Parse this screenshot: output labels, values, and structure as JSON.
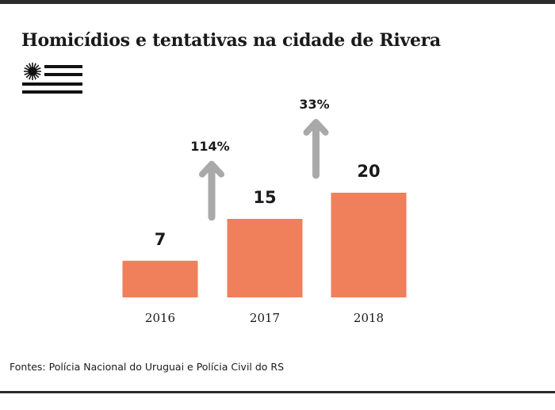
{
  "chart_data": {
    "type": "bar",
    "title": "Homicídios e tentativas na cidade de Rivera",
    "categories": [
      "2016",
      "2017",
      "2018"
    ],
    "values": [
      7,
      15,
      20
    ],
    "data_labels": [
      "7",
      "15",
      "20"
    ],
    "changes": [
      {
        "label": "114%",
        "from": "2016",
        "to": "2017"
      },
      {
        "label": "33%",
        "from": "2017",
        "to": "2018"
      }
    ],
    "xlabel": "",
    "ylabel": "",
    "grid": false,
    "bar_color": "#f07f5c",
    "arrow_color": "#a9a9a9"
  },
  "footer": {
    "source": "Fontes: Polícia Nacional do Uruguai e Polícia Civil do RS"
  },
  "flag": {
    "icon": "uruguay-flag-icon"
  }
}
